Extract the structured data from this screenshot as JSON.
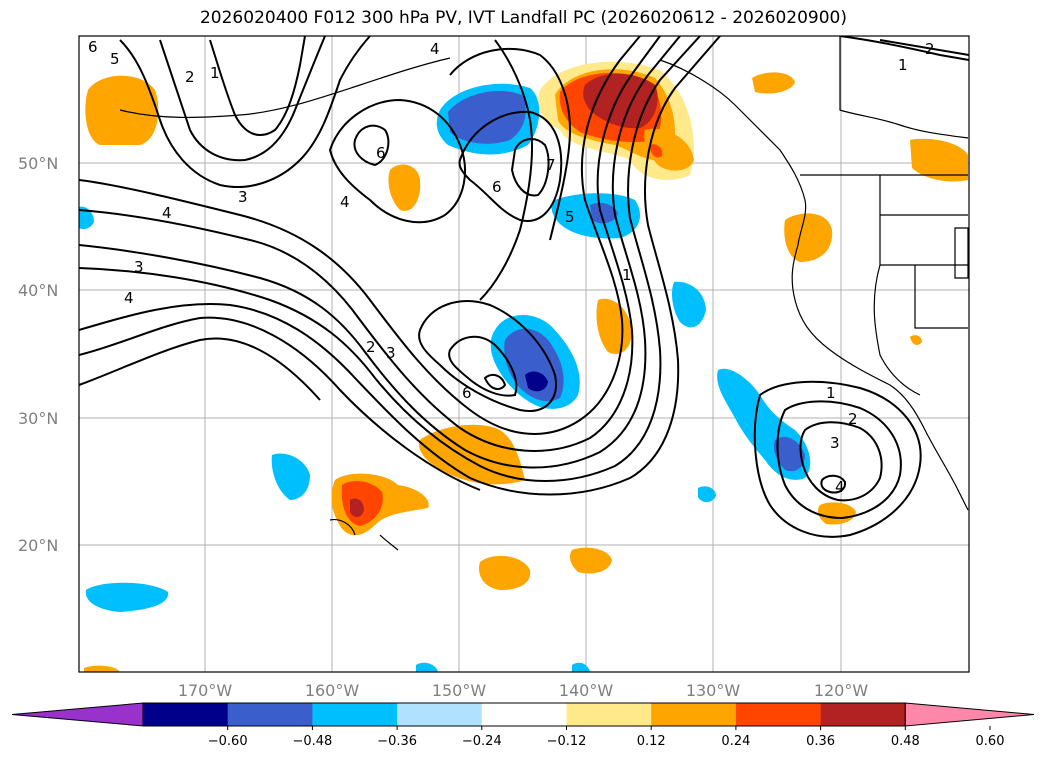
{
  "title": "2026020400 F012 300 hPa PV, IVT Landfall PC (2026020612 - 2026020900)",
  "map": {
    "lat_labels": [
      "50°N",
      "40°N",
      "30°N",
      "20°N"
    ],
    "lon_labels": [
      "170°W",
      "160°W",
      "150°W",
      "140°W",
      "130°W",
      "120°W"
    ]
  },
  "colorbar": {
    "ticks": [
      "−0.60",
      "−0.48",
      "−0.36",
      "−0.24",
      "−0.12",
      "0.12",
      "0.24",
      "0.36",
      "0.48",
      "0.60"
    ],
    "colors": [
      "#9932cc",
      "#00008b",
      "#3a5fcd",
      "#00bfff",
      "#b0e2ff",
      "#ffffff",
      "#ffe98a",
      "#ffa500",
      "#ff4500",
      "#b22222",
      "#ff88aa"
    ]
  },
  "contour_labels": [
    "6",
    "5",
    "2",
    "1",
    "3",
    "4",
    "3",
    "4",
    "6",
    "4",
    "6",
    "7",
    "5",
    "1",
    "2",
    "3",
    "6",
    "1",
    "2",
    "3",
    "4",
    "2",
    "1",
    "4"
  ]
}
